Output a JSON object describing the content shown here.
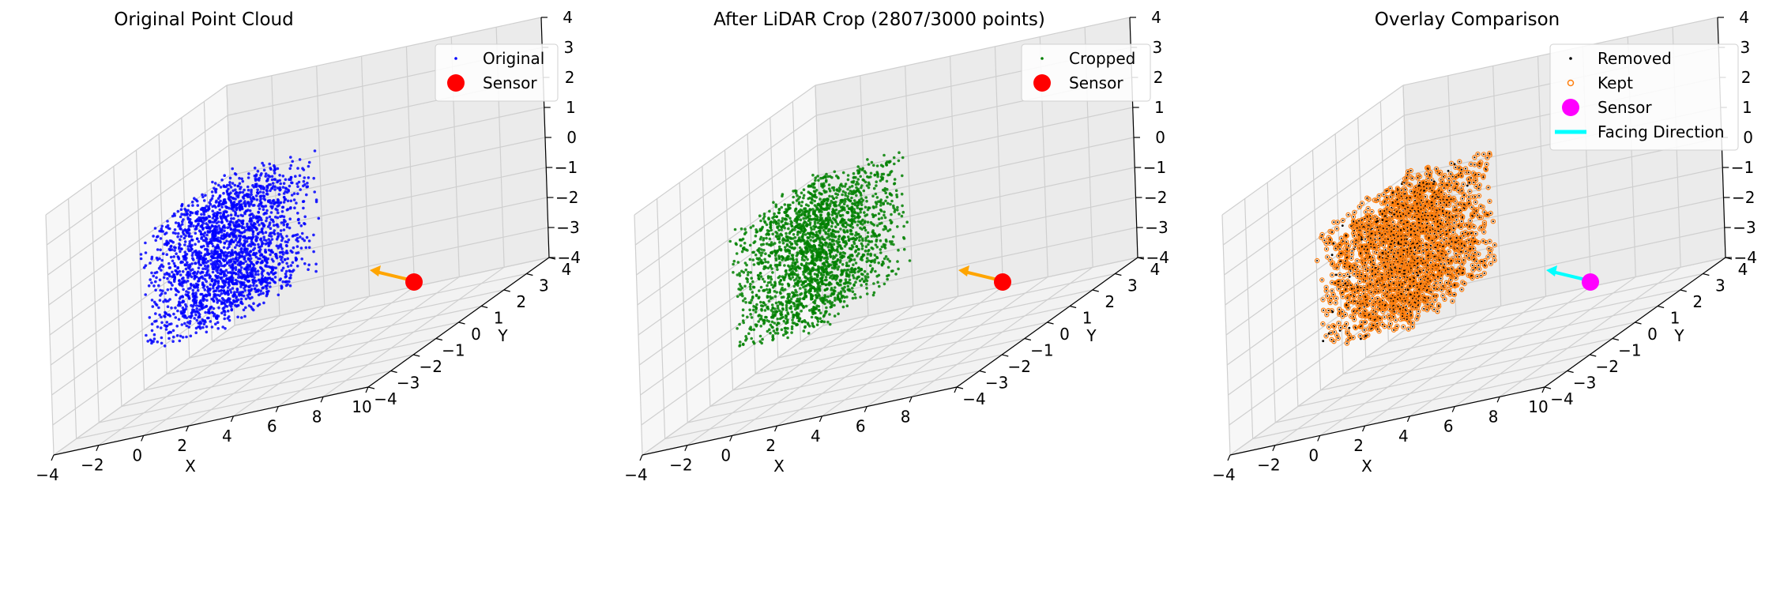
{
  "chart_data": [
    {
      "type": "scatter",
      "projection": "3d",
      "title": "Original Point Cloud",
      "xlabel": "X",
      "ylabel": "Y",
      "zlabel": "",
      "xlim": [
        -4,
        10
      ],
      "ylim": [
        -4,
        4
      ],
      "zlim": [
        -4,
        4
      ],
      "xticks": [
        "−4",
        "−2",
        "0",
        "2",
        "4",
        "6",
        "8",
        "10"
      ],
      "yticks": [
        "−4",
        "−3",
        "−2",
        "−1",
        "0",
        "1",
        "2",
        "3",
        "4"
      ],
      "zticks": [
        "−4",
        "−3",
        "−2",
        "−1",
        "0",
        "1",
        "2",
        "3",
        "4"
      ],
      "grid": true,
      "legend_position": "top-right",
      "series": [
        {
          "name": "Original",
          "kind": "points",
          "color": "#0000ff",
          "count": 3000,
          "x_range": [
            -2,
            2
          ],
          "y_range": [
            -2,
            2
          ],
          "z_range": [
            -2,
            2
          ]
        },
        {
          "name": "Sensor",
          "kind": "marker",
          "color": "#ff0000",
          "x": 2,
          "y": 4,
          "z": 0
        }
      ],
      "arrow": {
        "from": [
          2,
          4,
          0
        ],
        "to": [
          1,
          2.8,
          0
        ],
        "color": "#ffa500"
      }
    },
    {
      "type": "scatter",
      "projection": "3d",
      "title": "After LiDAR Crop (2807/3000 points)",
      "xlabel": "X",
      "ylabel": "Y",
      "zlabel": "",
      "xlim": [
        -4,
        10
      ],
      "ylim": [
        -4,
        4
      ],
      "zlim": [
        -4,
        4
      ],
      "xticks": [
        "−4",
        "−2",
        "0",
        "2",
        "4",
        "6",
        "8",
        ""
      ],
      "yticks": [
        "−4",
        "−3",
        "−2",
        "−1",
        "0",
        "1",
        "2",
        "3",
        "4"
      ],
      "zticks": [
        "−4",
        "−3",
        "−2",
        "−1",
        "0",
        "1",
        "2",
        "3",
        "4"
      ],
      "grid": true,
      "legend_position": "top-right",
      "series": [
        {
          "name": "Cropped",
          "kind": "points",
          "color": "#008000",
          "count": 2807,
          "x_range": [
            -2,
            2
          ],
          "y_range": [
            -2,
            2
          ],
          "z_range": [
            -2,
            2
          ]
        },
        {
          "name": "Sensor",
          "kind": "marker",
          "color": "#ff0000",
          "x": 2,
          "y": 4,
          "z": 0
        }
      ],
      "arrow": {
        "from": [
          2,
          4,
          0
        ],
        "to": [
          1,
          2.8,
          0
        ],
        "color": "#ffa500"
      }
    },
    {
      "type": "scatter",
      "projection": "3d",
      "title": "Overlay Comparison",
      "xlabel": "X",
      "ylabel": "Y",
      "zlabel": "",
      "xlim": [
        -4,
        10
      ],
      "ylim": [
        -4,
        4
      ],
      "zlim": [
        -4,
        4
      ],
      "xticks": [
        "−4",
        "−2",
        "0",
        "2",
        "4",
        "6",
        "8",
        "10"
      ],
      "yticks": [
        "−4",
        "−3",
        "−2",
        "−1",
        "0",
        "1",
        "2",
        "3",
        "4"
      ],
      "zticks": [
        "−4",
        "−3",
        "−2",
        "−1",
        "0",
        "1",
        "2",
        "3",
        "4"
      ],
      "grid": true,
      "legend_position": "top-right",
      "series": [
        {
          "name": "Removed",
          "kind": "points",
          "color": "#000000",
          "count": 193,
          "x_range": [
            -2,
            2
          ],
          "y_range": [
            -2,
            2
          ],
          "z_range": [
            -2,
            2
          ]
        },
        {
          "name": "Kept",
          "kind": "points",
          "color": "#ff7f0e",
          "count": 2807,
          "x_range": [
            -2,
            2
          ],
          "y_range": [
            -2,
            2
          ],
          "z_range": [
            -2,
            2
          ]
        },
        {
          "name": "Sensor",
          "kind": "marker",
          "color": "#ff00ff",
          "x": 2,
          "y": 4,
          "z": 0
        },
        {
          "name": "Facing Direction",
          "kind": "line",
          "color": "#00ffff"
        }
      ],
      "arrow": {
        "from": [
          2,
          4,
          0
        ],
        "to": [
          1,
          2.8,
          0
        ],
        "color": "#00ffff"
      }
    }
  ]
}
